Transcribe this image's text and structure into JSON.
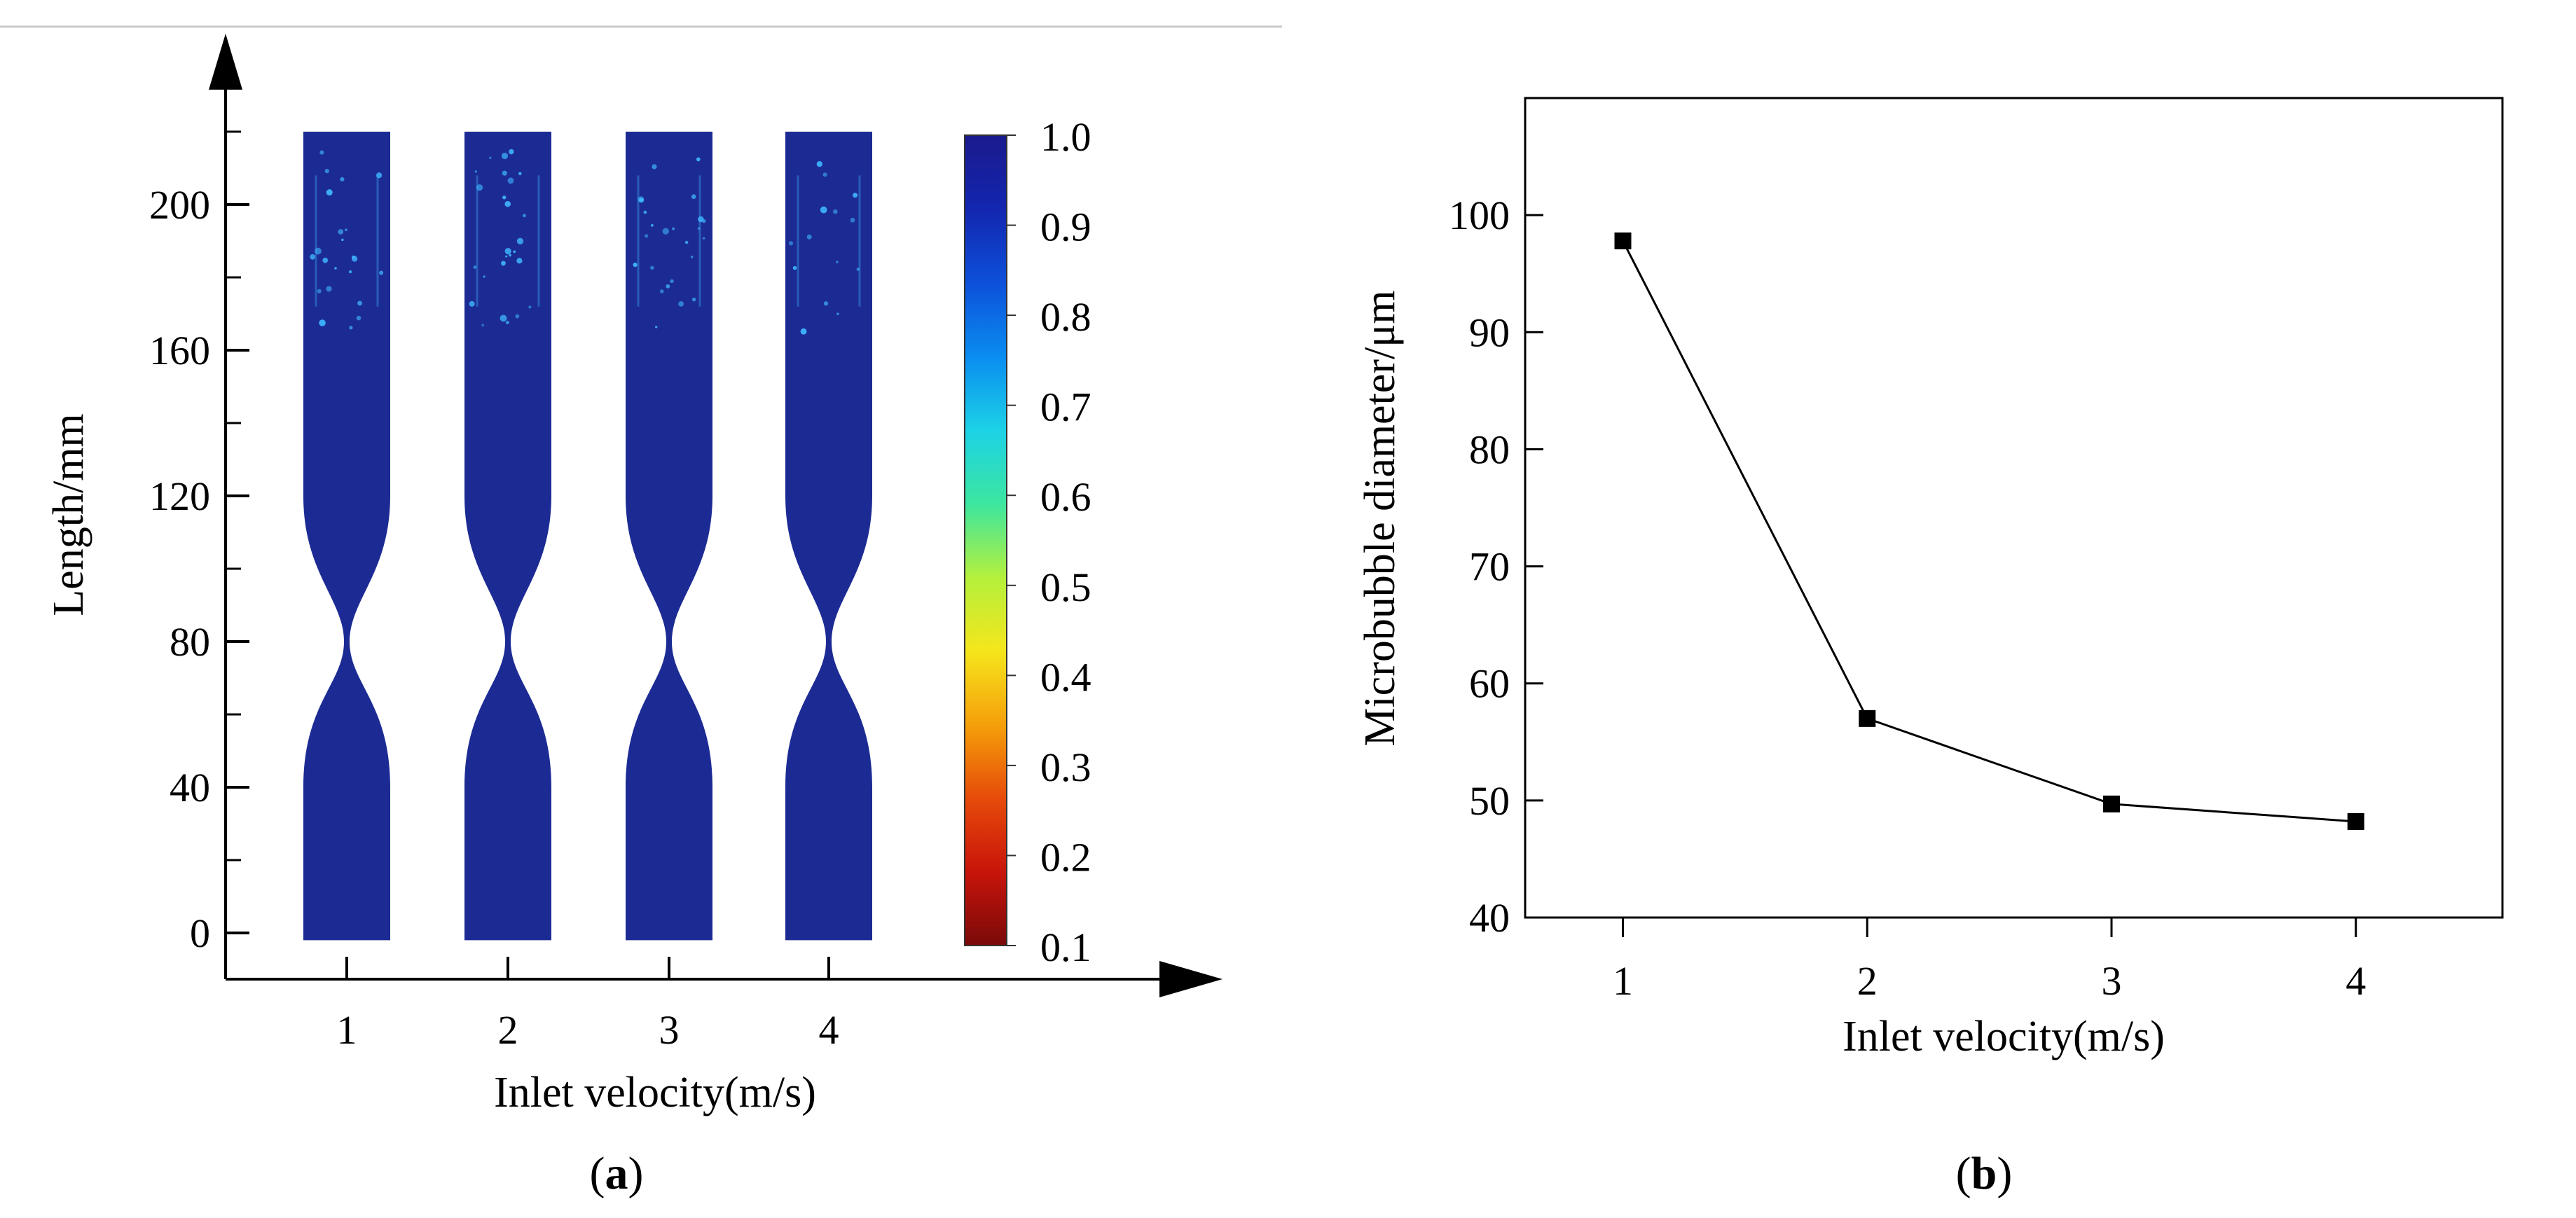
{
  "chart_data": [
    {
      "panel": "a",
      "panel_label_open": "(",
      "panel_label_letter": "a",
      "panel_label_close": ")",
      "type": "heatmap",
      "title": "",
      "xlabel": "Inlet velocity(m/s)",
      "ylabel": "Length/mm",
      "categories": [
        "1",
        "2",
        "3",
        "4"
      ],
      "ylim": [
        -10,
        225
      ],
      "yticks": [
        0,
        40,
        80,
        120,
        160,
        200
      ],
      "ytick_labels": [
        "0",
        "40",
        "80",
        "120",
        "160",
        "200"
      ],
      "nozzle_profile_mm": {
        "bottom": -2,
        "lower_straight_end": 40,
        "throat": 80,
        "upper_straight_start": 120,
        "top": 220
      },
      "colorbar": {
        "min": 0.1,
        "max": 1.0,
        "tick_labels": [
          "1.0",
          "0.9",
          "0.8",
          "0.7",
          "0.6",
          "0.5",
          "0.4",
          "0.3",
          "0.2",
          "0.1"
        ],
        "colors": [
          "#1a1a8c",
          "#1326b0",
          "#0d50d9",
          "#0a8cf0",
          "#1cd2e6",
          "#3ce6a0",
          "#b4f03c",
          "#f5e61c",
          "#f5a00a",
          "#e64b0a",
          "#c8140a",
          "#7a0a0a"
        ]
      },
      "field_color": "#1c2b94",
      "bubble_color": "#3fb4ff"
    },
    {
      "panel": "b",
      "panel_label_open": "(",
      "panel_label_letter": "b",
      "panel_label_close": ")",
      "type": "line",
      "title": "",
      "xlabel": "Inlet velocity(m/s)",
      "ylabel": "Microbubble diameter/μm",
      "x": [
        1,
        2,
        3,
        4
      ],
      "y": [
        97.8,
        57.0,
        49.7,
        48.2
      ],
      "xlim": [
        0.6,
        4.6
      ],
      "ylim": [
        40,
        110
      ],
      "xticks": [
        1,
        2,
        3,
        4
      ],
      "xtick_labels": [
        "1",
        "2",
        "3",
        "4"
      ],
      "yticks": [
        40,
        50,
        60,
        70,
        80,
        90,
        100
      ],
      "ytick_labels": [
        "40",
        "50",
        "60",
        "70",
        "80",
        "90",
        "100"
      ],
      "series_color": "#000000",
      "marker": "square"
    }
  ]
}
